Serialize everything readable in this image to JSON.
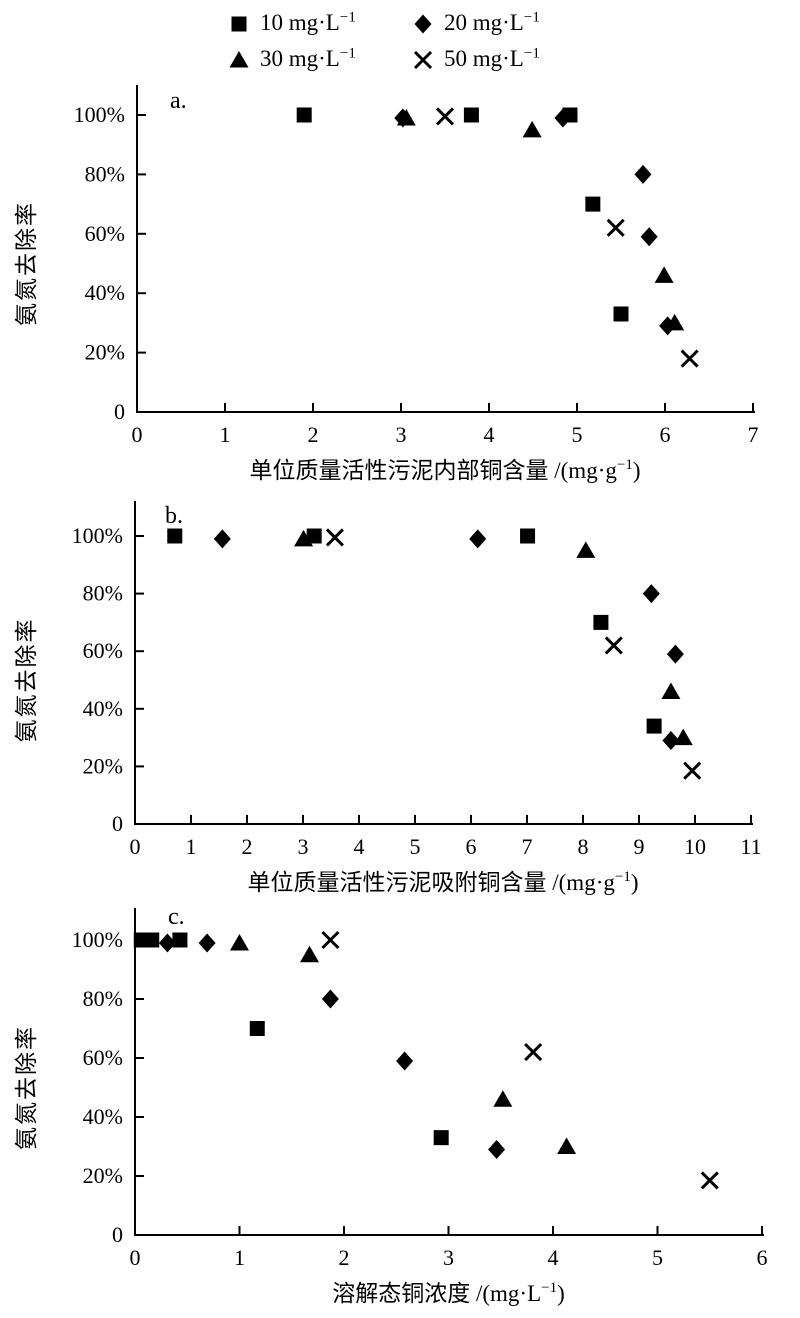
{
  "figure": {
    "background": "#ffffff",
    "marker_color": "#000000",
    "y_axis_label": "氨氮去除率",
    "y_tick_labels": [
      "0",
      "20%",
      "40%",
      "60%",
      "80%",
      "100%"
    ]
  },
  "legend": {
    "items": [
      {
        "marker": "square",
        "label": "10 mg·L",
        "sup": "−1"
      },
      {
        "marker": "diamond",
        "label": "20 mg·L",
        "sup": "−1"
      },
      {
        "marker": "triangle",
        "label": "30 mg·L",
        "sup": "−1"
      },
      {
        "marker": "cross",
        "label": "50 mg·L",
        "sup": "−1"
      }
    ]
  },
  "chart_data": [
    {
      "type": "scatter",
      "panel_label": "a.",
      "xlabel_main": "单位质量活性污泥内部铜含量 /(mg·g",
      "xlabel_sup": "−1",
      "xlabel_end": ")",
      "ylabel": "氨氮去除率",
      "xlim": [
        0,
        7
      ],
      "xticks": [
        0,
        1,
        2,
        3,
        4,
        5,
        6,
        7
      ],
      "ylim_pct": [
        0,
        110
      ],
      "yticks_pct": [
        0,
        20,
        40,
        60,
        80,
        100
      ],
      "series": [
        {
          "name": "10 mg·L−1",
          "marker": "square",
          "points": [
            [
              1.9,
              100
            ],
            [
              3.8,
              100
            ],
            [
              4.92,
              100
            ],
            [
              5.18,
              70
            ],
            [
              5.5,
              33
            ]
          ]
        },
        {
          "name": "20 mg·L−1",
          "marker": "diamond",
          "points": [
            [
              3.02,
              99
            ],
            [
              4.84,
              99
            ],
            [
              5.75,
              80
            ],
            [
              5.82,
              59
            ],
            [
              6.03,
              29
            ]
          ]
        },
        {
          "name": "30 mg·L−1",
          "marker": "triangle",
          "points": [
            [
              3.06,
              99
            ],
            [
              4.49,
              95
            ],
            [
              5.99,
              46
            ],
            [
              6.11,
              30
            ]
          ]
        },
        {
          "name": "50 mg·L−1",
          "marker": "cross",
          "points": [
            [
              3.5,
              99.5
            ],
            [
              5.44,
              62
            ],
            [
              6.28,
              18
            ]
          ]
        }
      ]
    },
    {
      "type": "scatter",
      "panel_label": "b.",
      "xlabel_main": "单位质量活性污泥吸附铜含量 /(mg·g",
      "xlabel_sup": "−1",
      "xlabel_end": ")",
      "ylabel": "氨氮去除率",
      "xlim": [
        0,
        11
      ],
      "xticks": [
        0,
        1,
        2,
        3,
        4,
        5,
        6,
        7,
        8,
        9,
        10,
        11
      ],
      "ylim_pct": [
        0,
        110
      ],
      "yticks_pct": [
        0,
        20,
        40,
        60,
        80,
        100
      ],
      "series": [
        {
          "name": "10 mg·L−1",
          "marker": "square",
          "points": [
            [
              0.71,
              100
            ],
            [
              3.2,
              100
            ],
            [
              7.01,
              100
            ],
            [
              8.32,
              70
            ],
            [
              9.27,
              34
            ]
          ]
        },
        {
          "name": "20 mg·L−1",
          "marker": "diamond",
          "points": [
            [
              1.56,
              99
            ],
            [
              6.12,
              99
            ],
            [
              9.22,
              80
            ],
            [
              9.65,
              59
            ],
            [
              9.57,
              29
            ]
          ]
        },
        {
          "name": "30 mg·L−1",
          "marker": "triangle",
          "points": [
            [
              3.01,
              99
            ],
            [
              8.05,
              95
            ],
            [
              9.57,
              46
            ],
            [
              9.79,
              30
            ]
          ]
        },
        {
          "name": "50 mg·L−1",
          "marker": "cross",
          "points": [
            [
              3.57,
              99.5
            ],
            [
              8.55,
              62
            ],
            [
              9.95,
              18.5
            ]
          ]
        }
      ]
    },
    {
      "type": "scatter",
      "panel_label": "c.",
      "xlabel_main": "溶解态铜浓度 /(mg·L",
      "xlabel_sup": "−1",
      "xlabel_end": ")",
      "ylabel": "氨氮去除率",
      "xlim": [
        0,
        6
      ],
      "xticks": [
        0,
        1,
        2,
        3,
        4,
        5,
        6
      ],
      "ylim_pct": [
        0,
        110
      ],
      "yticks_pct": [
        0,
        20,
        40,
        60,
        80,
        100
      ],
      "series": [
        {
          "name": "10 mg·L−1",
          "marker": "square",
          "points": [
            [
              0.06,
              100
            ],
            [
              0.16,
              100
            ],
            [
              0.43,
              100
            ],
            [
              1.17,
              70
            ],
            [
              2.93,
              33
            ]
          ]
        },
        {
          "name": "20 mg·L−1",
          "marker": "diamond",
          "points": [
            [
              0.31,
              99
            ],
            [
              0.69,
              99
            ],
            [
              1.87,
              80
            ],
            [
              2.58,
              59
            ],
            [
              3.46,
              29
            ]
          ]
        },
        {
          "name": "30 mg·L−1",
          "marker": "triangle",
          "points": [
            [
              1.0,
              99
            ],
            [
              1.67,
              95
            ],
            [
              3.52,
              46
            ],
            [
              4.13,
              30
            ]
          ]
        },
        {
          "name": "50 mg·L−1",
          "marker": "cross",
          "points": [
            [
              1.87,
              100
            ],
            [
              3.81,
              62
            ],
            [
              5.5,
              18.5
            ]
          ]
        }
      ]
    }
  ]
}
